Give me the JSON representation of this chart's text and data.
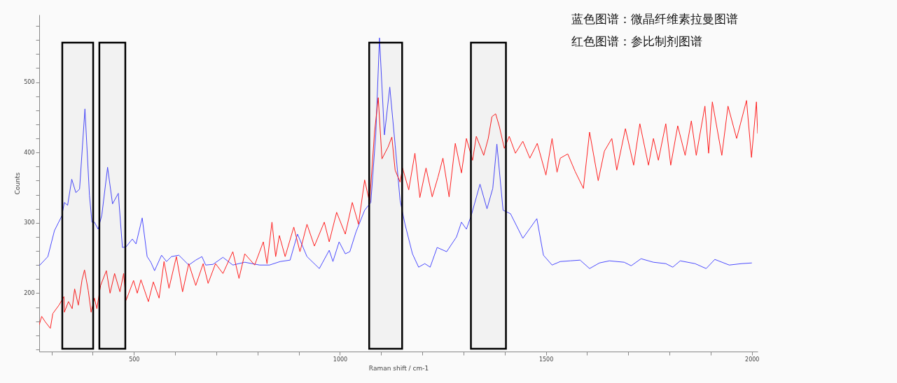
{
  "chart_data": {
    "type": "line",
    "xlabel": "Raman shift / cm-1",
    "ylabel": "Counts",
    "xlim": [
      270,
      2014
    ],
    "ylim": [
      117,
      596
    ],
    "xticks": [
      {
        "value": 300,
        "label": null
      },
      {
        "value": 400,
        "label": null
      },
      500,
      {
        "value": 600,
        "label": null
      },
      {
        "value": 700,
        "label": null
      },
      {
        "value": 800,
        "label": null
      },
      {
        "value": 900,
        "label": null
      },
      1000,
      {
        "value": 1100,
        "label": null
      },
      {
        "value": 1200,
        "label": null
      },
      {
        "value": 1300,
        "label": null
      },
      {
        "value": 1400,
        "label": null
      },
      1500,
      {
        "value": 1600,
        "label": null
      },
      {
        "value": 1700,
        "label": null
      },
      {
        "value": 1800,
        "label": null
      },
      {
        "value": 1900,
        "label": null
      },
      2000
    ],
    "yticks": [
      {
        "value": 120,
        "label": null
      },
      {
        "value": 140,
        "label": null
      },
      {
        "value": 160,
        "label": null
      },
      {
        "value": 180,
        "label": null
      },
      200,
      {
        "value": 220,
        "label": null
      },
      {
        "value": 240,
        "label": null
      },
      {
        "value": 260,
        "label": null
      },
      {
        "value": 280,
        "label": null
      },
      300,
      {
        "value": 320,
        "label": null
      },
      {
        "value": 340,
        "label": null
      },
      {
        "value": 360,
        "label": null
      },
      {
        "value": 380,
        "label": null
      },
      400,
      {
        "value": 420,
        "label": null
      },
      {
        "value": 440,
        "label": null
      },
      {
        "value": 460,
        "label": null
      },
      {
        "value": 480,
        "label": null
      },
      500,
      {
        "value": 520,
        "label": null
      },
      {
        "value": 540,
        "label": null
      },
      {
        "value": 560,
        "label": null
      },
      {
        "value": 580,
        "label": null
      }
    ],
    "grid": false,
    "line_style": "solid",
    "annotations": [
      "蓝色图谱：微晶纤维素拉曼图谱",
      "红色图谱：参比制剂图谱"
    ],
    "bands": [
      {
        "axis": "x",
        "from": 326,
        "to": 401,
        "color": "#000000"
      },
      {
        "axis": "x",
        "from": 416,
        "to": 479,
        "color": "#000000"
      },
      {
        "axis": "x",
        "from": 1071,
        "to": 1151,
        "color": "#000000"
      },
      {
        "axis": "x",
        "from": 1318,
        "to": 1403,
        "color": "#000000"
      }
    ],
    "series": [
      {
        "color": "#4b4bff",
        "x": [
          270,
          291,
          307,
          325,
          331,
          339,
          349,
          359,
          368,
          381,
          392,
          398,
          404,
          413,
          422,
          436,
          448,
          462,
          472,
          481,
          496,
          505,
          520,
          532,
          541,
          550,
          567,
          579,
          591,
          609,
          633,
          650,
          665,
          674,
          692,
          716,
          740,
          769,
          805,
          829,
          855,
          879,
          897,
          920,
          950,
          974,
          983,
          998,
          1013,
          1024,
          1039,
          1060,
          1075,
          1087,
          1096,
          1108,
          1121,
          1134,
          1146,
          1158,
          1176,
          1191,
          1206,
          1219,
          1236,
          1259,
          1283,
          1295,
          1307,
          1319,
          1340,
          1357,
          1371,
          1381,
          1396,
          1414,
          1444,
          1461,
          1478,
          1494,
          1515,
          1535,
          1559,
          1583,
          1606,
          1630,
          1654,
          1690,
          1707,
          1731,
          1761,
          1791,
          1808,
          1826,
          1862,
          1889,
          1910,
          1945,
          1975,
          2000
        ],
        "values": [
          239,
          252,
          289,
          310,
          329,
          325,
          362,
          343,
          348,
          462,
          339,
          301,
          301,
          291,
          311,
          379,
          327,
          342,
          265,
          266,
          277,
          270,
          307,
          252,
          244,
          232,
          254,
          245,
          252,
          254,
          240,
          247,
          252,
          240,
          241,
          251,
          240,
          244,
          240,
          240,
          245,
          247,
          284,
          252,
          235,
          261,
          245,
          273,
          256,
          259,
          287,
          318,
          329,
          426,
          563,
          425,
          493,
          411,
          332,
          298,
          256,
          237,
          242,
          237,
          265,
          259,
          280,
          301,
          291,
          311,
          355,
          320,
          349,
          412,
          318,
          313,
          278,
          292,
          306,
          254,
          240,
          245,
          246,
          247,
          235,
          243,
          246,
          244,
          239,
          249,
          244,
          242,
          237,
          246,
          242,
          235,
          248,
          240,
          242,
          243
        ]
      },
      {
        "color": "#ff2020",
        "x": [
          270,
          276,
          285,
          297,
          303,
          318,
          330,
          331,
          341,
          350,
          356,
          365,
          374,
          380,
          389,
          396,
          404,
          410,
          419,
          433,
          442,
          453,
          466,
          475,
          481,
          499,
          508,
          517,
          535,
          547,
          561,
          573,
          585,
          603,
          618,
          633,
          650,
          668,
          680,
          698,
          716,
          740,
          755,
          769,
          793,
          814,
          823,
          835,
          844,
          853,
          867,
          888,
          903,
          920,
          938,
          962,
          974,
          992,
          1013,
          1030,
          1045,
          1060,
          1072,
          1084,
          1093,
          1102,
          1117,
          1126,
          1134,
          1146,
          1152,
          1167,
          1182,
          1194,
          1209,
          1224,
          1238,
          1250,
          1265,
          1280,
          1295,
          1307,
          1322,
          1331,
          1349,
          1360,
          1369,
          1378,
          1387,
          1399,
          1411,
          1426,
          1444,
          1461,
          1479,
          1500,
          1515,
          1527,
          1535,
          1553,
          1571,
          1591,
          1606,
          1627,
          1642,
          1660,
          1672,
          1693,
          1713,
          1728,
          1749,
          1761,
          1773,
          1791,
          1803,
          1820,
          1838,
          1853,
          1865,
          1886,
          1895,
          1904,
          1927,
          1942,
          1963,
          1987,
          1999,
          2011,
          2014
        ],
        "values": [
          155,
          167,
          159,
          150,
          171,
          183,
          195,
          173,
          188,
          178,
          206,
          183,
          219,
          233,
          204,
          173,
          193,
          178,
          211,
          232,
          200,
          228,
          202,
          228,
          190,
          218,
          200,
          219,
          188,
          216,
          193,
          245,
          207,
          252,
          202,
          242,
          211,
          242,
          214,
          242,
          228,
          259,
          221,
          256,
          240,
          273,
          242,
          301,
          252,
          282,
          252,
          294,
          259,
          298,
          267,
          301,
          273,
          315,
          284,
          329,
          298,
          361,
          329,
          429,
          478,
          391,
          408,
          422,
          375,
          358,
          378,
          347,
          399,
          336,
          378,
          337,
          365,
          392,
          337,
          413,
          371,
          420,
          389,
          423,
          396,
          420,
          451,
          455,
          437,
          406,
          423,
          399,
          416,
          392,
          413,
          368,
          420,
          372,
          392,
          398,
          373,
          349,
          429,
          360,
          402,
          420,
          375,
          434,
          382,
          441,
          382,
          420,
          389,
          441,
          382,
          438,
          396,
          445,
          396,
          466,
          399,
          472,
          396,
          466,
          420,
          474,
          393,
          472,
          427
        ]
      }
    ]
  }
}
